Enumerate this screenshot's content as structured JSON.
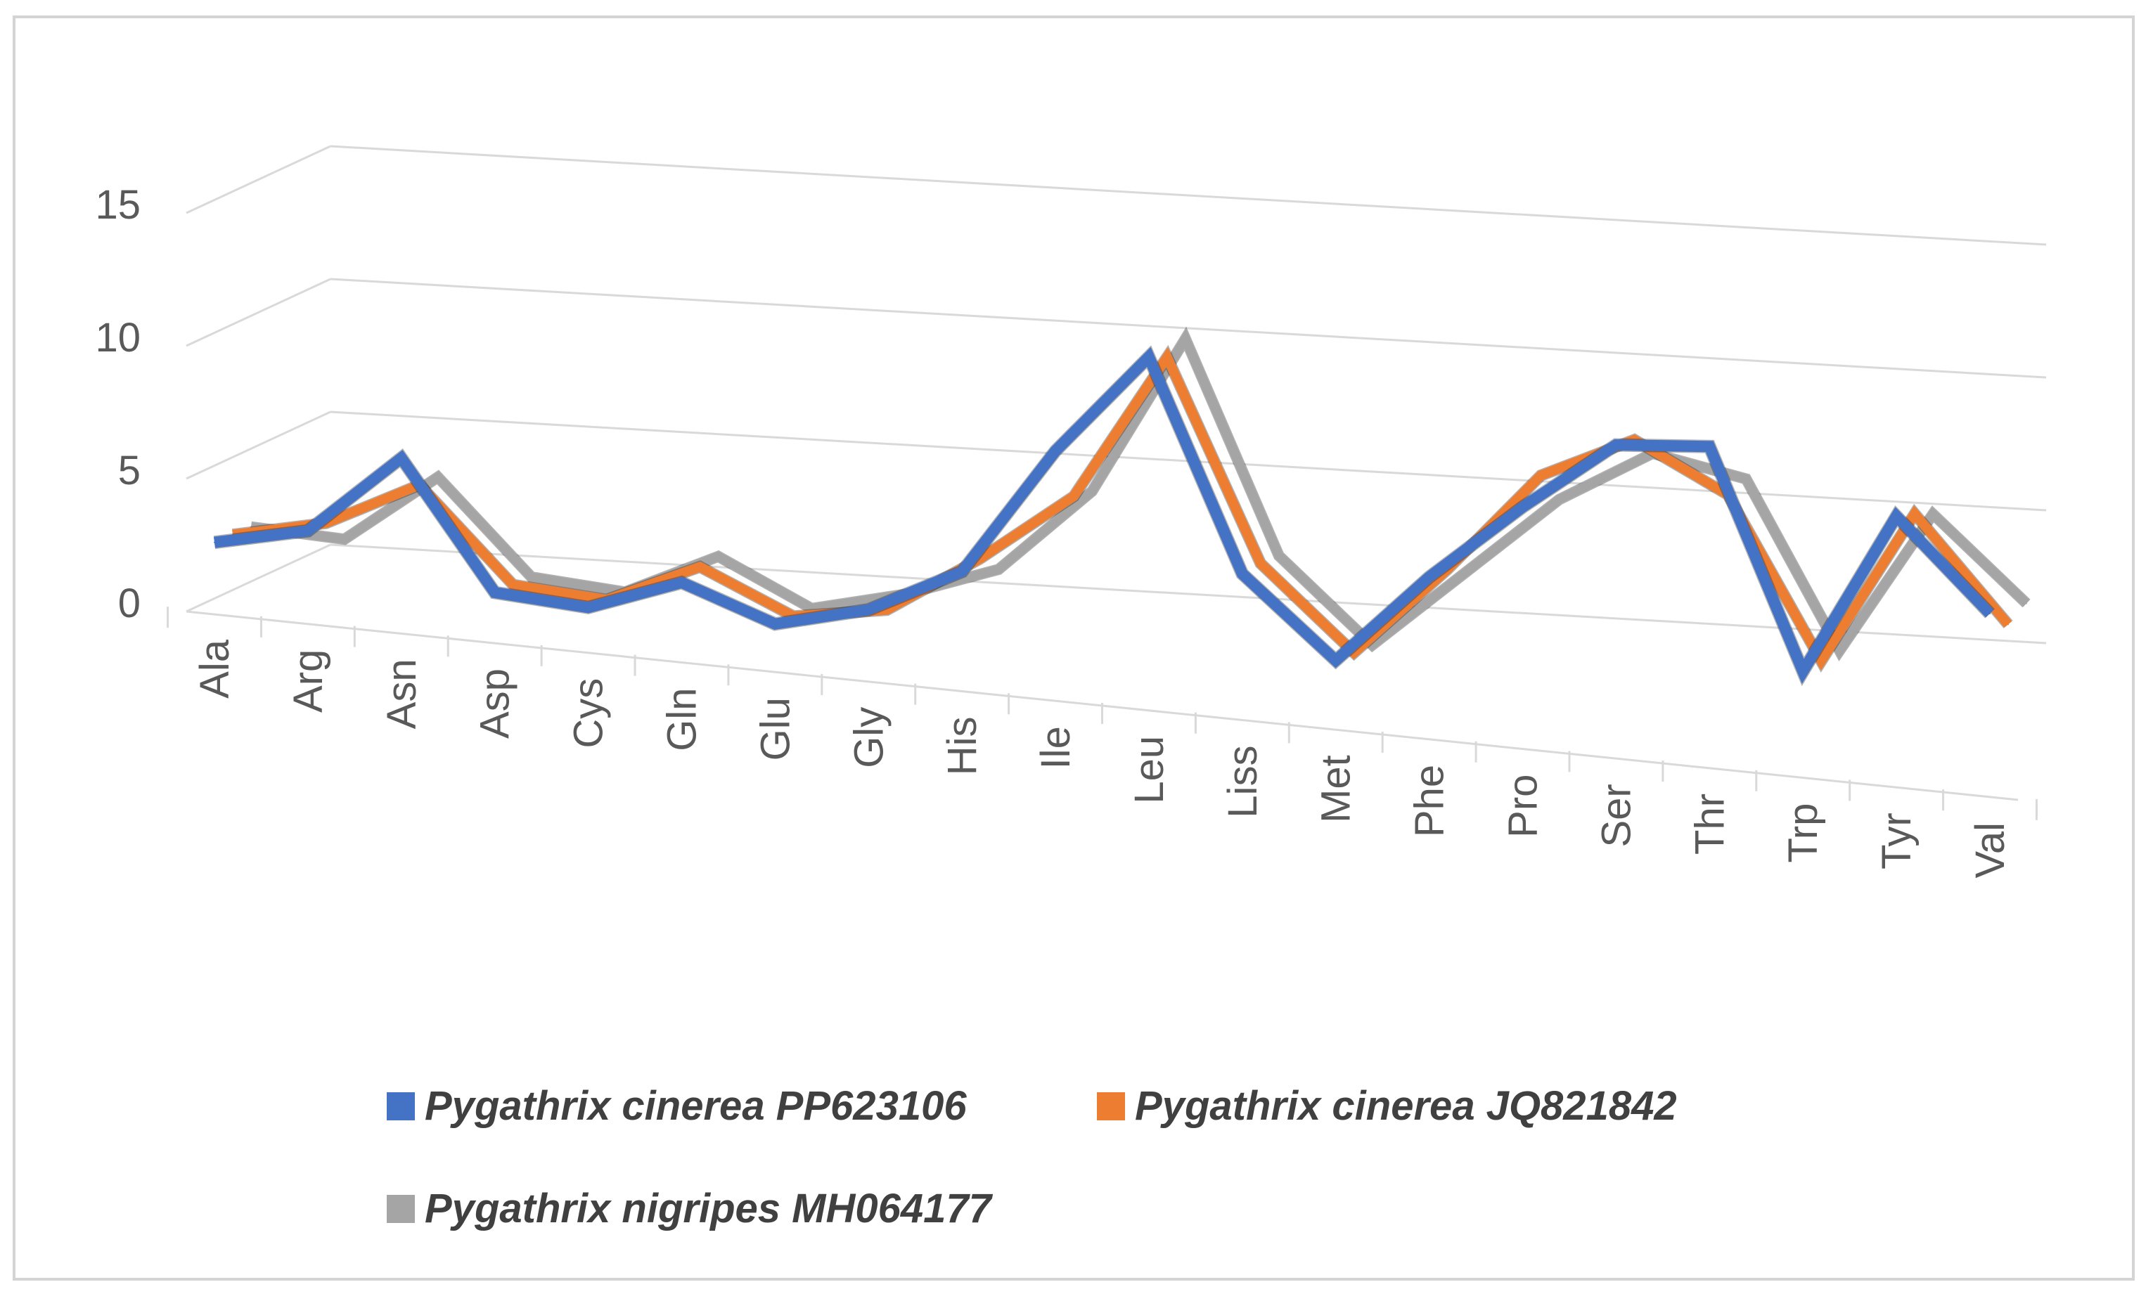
{
  "chart_data": {
    "type": "line",
    "style": "3d-line",
    "title": "",
    "xlabel": "",
    "ylabel": "",
    "ylim": [
      0,
      15
    ],
    "yticks": [
      0,
      5,
      10,
      15
    ],
    "categories": [
      "Ala",
      "Arg",
      "Asn",
      "Asp",
      "Cys",
      "Gln",
      "Glu",
      "Gly",
      "His",
      "Ile",
      "Leu",
      "Liss",
      "Met",
      "Phe",
      "Pro",
      "Ser",
      "Thr",
      "Trp",
      "Tyr",
      "Val"
    ],
    "series": [
      {
        "name": "Pygathrix cinerea PP623106",
        "color": "#4472c4",
        "values": [
          2.6,
          3.4,
          6.5,
          1.8,
          1.6,
          2.9,
          1.7,
          2.6,
          4.4,
          9.3,
          13.2,
          5.4,
          2.5,
          6.0,
          9.0,
          11.7,
          12.0,
          3.9,
          10.1,
          6.8
        ]
      },
      {
        "name": "Pygathrix cinerea JQ821842",
        "color": "#ed7d31",
        "values": [
          2.6,
          3.4,
          5.2,
          1.8,
          1.6,
          3.2,
          1.7,
          2.3,
          4.6,
          7.3,
          12.9,
          5.5,
          2.5,
          6.0,
          9.9,
          11.6,
          9.9,
          4.0,
          9.9,
          6.1
        ]
      },
      {
        "name": "Pygathrix nigripes MH064177",
        "color": "#a5a5a5",
        "values": [
          2.6,
          2.5,
          5.2,
          1.8,
          1.6,
          3.3,
          1.7,
          2.6,
          3.9,
          7.2,
          13.3,
          5.5,
          2.5,
          5.6,
          8.7,
          10.8,
          10.2,
          4.1,
          9.6,
          6.6
        ]
      }
    ],
    "legend_position": "bottom"
  }
}
